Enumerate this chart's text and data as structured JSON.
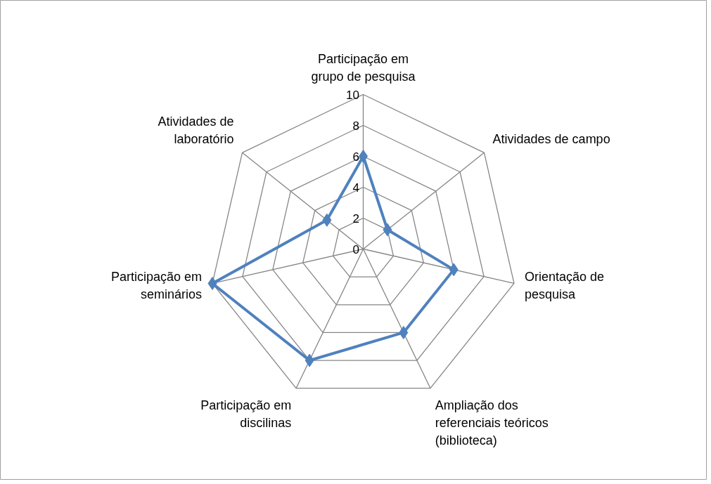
{
  "chart_data": {
    "type": "radar",
    "categories": [
      "Participação em\ngrupo de pesquisa",
      "Atividades de campo",
      "Orientação de\npesquisa",
      "Ampliação dos\nreferenciais teóricos\n(biblioteca)",
      "Participação em\ndiscilinas",
      "Participação em\nseminários",
      "Atividades de\nlaboratório"
    ],
    "series": [
      {
        "color": "#4f81bd",
        "values": [
          6,
          2,
          6,
          6,
          8,
          10,
          3
        ]
      }
    ],
    "ylim": [
      0,
      10
    ],
    "yticks": [
      0,
      2,
      4,
      6,
      8,
      10
    ],
    "grid": true,
    "marker": "diamond"
  }
}
